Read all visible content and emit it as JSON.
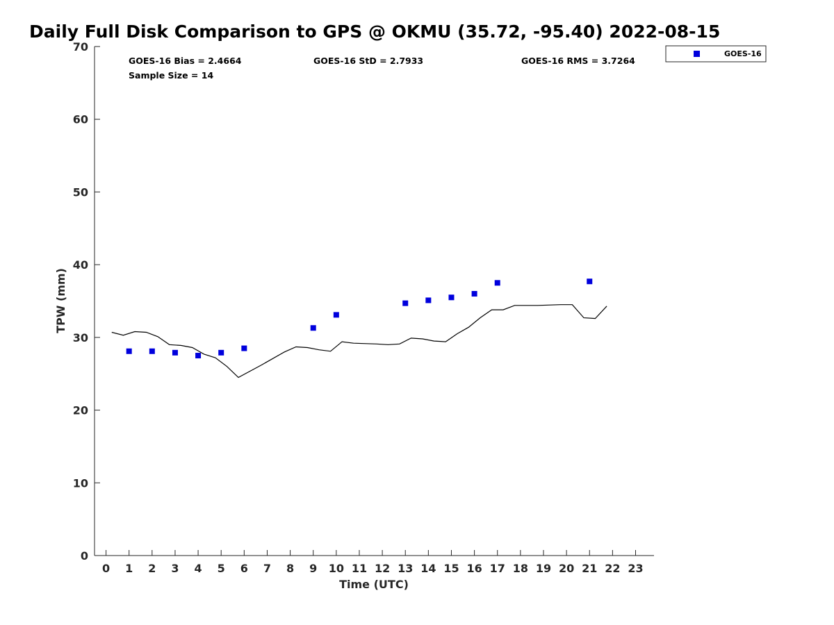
{
  "chart_data": {
    "type": "scatter",
    "title": "Daily Full Disk Comparison to GPS @ OKMU (35.72, -95.40) 2022-08-15",
    "xlabel": "Time (UTC)",
    "ylabel": "TPW (mm)",
    "xlim": [
      -0.5,
      23.8
    ],
    "ylim": [
      0,
      70
    ],
    "xticks": [
      0,
      1,
      2,
      3,
      4,
      5,
      6,
      7,
      8,
      9,
      10,
      11,
      12,
      13,
      14,
      15,
      16,
      17,
      18,
      19,
      20,
      21,
      22,
      23
    ],
    "yticks": [
      0,
      10,
      20,
      30,
      40,
      50,
      60,
      70
    ],
    "legend": {
      "placement": "top-right-outside",
      "entries": [
        "GOES-16"
      ]
    },
    "stats": {
      "bias": "GOES-16 Bias = 2.4664",
      "std": "GOES-16 StD = 2.7933",
      "rms": "GOES-16 RMS = 3.7264",
      "sample_size": "Sample Size = 14"
    },
    "series": [
      {
        "name": "GOES-16",
        "kind": "scatter",
        "color": "#0000dd",
        "marker": "square",
        "x": [
          1,
          2,
          3,
          4,
          5,
          6,
          9,
          10,
          13,
          14,
          15,
          16,
          17,
          21
        ],
        "y": [
          28.1,
          28.1,
          27.9,
          27.5,
          27.9,
          28.5,
          31.3,
          33.1,
          34.7,
          35.1,
          35.5,
          36.0,
          37.5,
          37.7
        ]
      },
      {
        "kind": "line",
        "color": "#000000",
        "x": [
          0.25,
          0.75,
          1.25,
          1.75,
          2.25,
          2.75,
          3.25,
          3.75,
          4.25,
          4.75,
          5.25,
          5.75,
          6.75,
          7.75,
          8.25,
          8.75,
          9.25,
          9.75,
          10.25,
          10.75,
          11.75,
          12.25,
          12.75,
          13.25,
          13.75,
          14.25,
          14.75,
          15.25,
          15.75,
          16.25,
          16.75,
          17.25,
          17.75,
          18.75,
          19.75,
          20.25,
          20.75,
          21.25,
          21.75
        ],
        "y": [
          30.7,
          30.3,
          30.8,
          30.7,
          30.1,
          29.0,
          28.9,
          28.6,
          27.7,
          27.2,
          26.0,
          24.5,
          26.2,
          28.0,
          28.7,
          28.6,
          28.3,
          28.1,
          29.4,
          29.2,
          29.1,
          29.0,
          29.1,
          29.9,
          29.8,
          29.5,
          29.4,
          30.5,
          31.4,
          32.7,
          33.8,
          33.8,
          34.4,
          34.4,
          34.5,
          34.5,
          32.7,
          32.6,
          34.3
        ]
      }
    ]
  }
}
